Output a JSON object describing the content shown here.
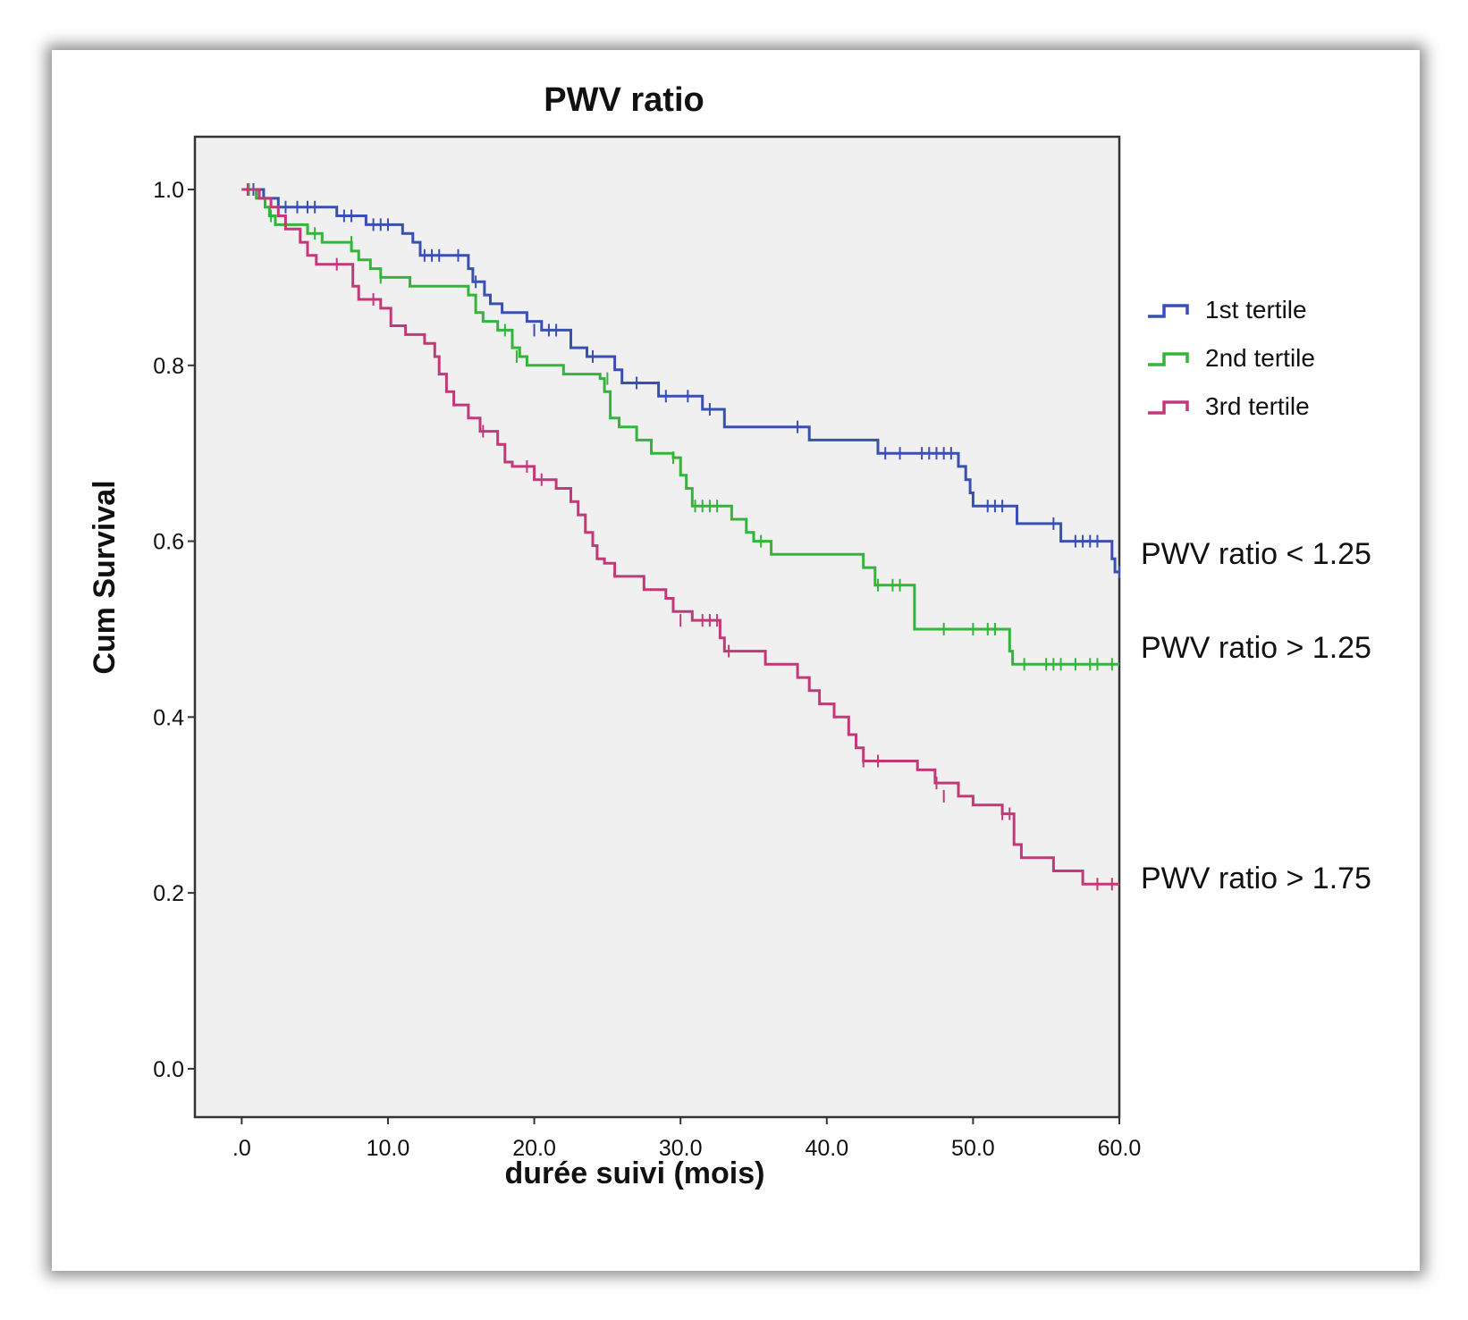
{
  "chart_data": {
    "type": "line",
    "subtype": "kaplan-meier step",
    "title": "PWV ratio",
    "xlabel": "durée suivi (mois)",
    "ylabel": "Cum Survival",
    "xlim": [
      -3.2,
      60
    ],
    "ylim": [
      -0.055,
      1.06
    ],
    "x_ticks": [
      0,
      10,
      20,
      30,
      40,
      50,
      60
    ],
    "x_tick_labels": [
      ".0",
      "10.0",
      "20.0",
      "30.0",
      "40.0",
      "50.0",
      "60.0"
    ],
    "y_ticks": [
      0,
      0.2,
      0.4,
      0.6,
      0.8,
      1.0
    ],
    "y_tick_labels": [
      "0.0",
      "0.2",
      "0.4",
      "0.6",
      "0.8",
      "1.0"
    ],
    "grid": false,
    "legend_position": "right",
    "colors": {
      "background": "#f0f0f0",
      "plot_border": "#333333"
    },
    "series": [
      {
        "name": "1st tertile",
        "color": "#3a50b0",
        "annotation": "PWV ratio < 1.25",
        "steps": [
          [
            0,
            1.0
          ],
          [
            1.5,
            0.99
          ],
          [
            2.5,
            0.98
          ],
          [
            6.5,
            0.97
          ],
          [
            8.5,
            0.96
          ],
          [
            11,
            0.95
          ],
          [
            11.7,
            0.94
          ],
          [
            12.2,
            0.925
          ],
          [
            15.5,
            0.91
          ],
          [
            15.8,
            0.895
          ],
          [
            16.6,
            0.88
          ],
          [
            17,
            0.87
          ],
          [
            17.8,
            0.86
          ],
          [
            19.5,
            0.85
          ],
          [
            20.5,
            0.84
          ],
          [
            22.5,
            0.82
          ],
          [
            23.6,
            0.81
          ],
          [
            25.5,
            0.795
          ],
          [
            26,
            0.78
          ],
          [
            28.5,
            0.765
          ],
          [
            31.5,
            0.75
          ],
          [
            33,
            0.73
          ],
          [
            38.8,
            0.715
          ],
          [
            43.5,
            0.7
          ],
          [
            49,
            0.685
          ],
          [
            49.5,
            0.67
          ],
          [
            49.8,
            0.655
          ],
          [
            50,
            0.64
          ],
          [
            53,
            0.62
          ],
          [
            56,
            0.6
          ],
          [
            59.5,
            0.58
          ],
          [
            59.7,
            0.565
          ],
          [
            60,
            0.565
          ]
        ],
        "censored": [
          [
            0.8,
            1.0
          ],
          [
            3,
            0.98
          ],
          [
            3.8,
            0.98
          ],
          [
            4.5,
            0.98
          ],
          [
            5,
            0.98
          ],
          [
            7,
            0.97
          ],
          [
            7.5,
            0.97
          ],
          [
            9,
            0.96
          ],
          [
            9.5,
            0.96
          ],
          [
            10,
            0.96
          ],
          [
            12.5,
            0.925
          ],
          [
            13,
            0.925
          ],
          [
            13.5,
            0.925
          ],
          [
            14.8,
            0.925
          ],
          [
            16,
            0.895
          ],
          [
            20,
            0.84
          ],
          [
            21,
            0.84
          ],
          [
            21.5,
            0.84
          ],
          [
            24,
            0.81
          ],
          [
            27,
            0.78
          ],
          [
            29,
            0.765
          ],
          [
            30.5,
            0.765
          ],
          [
            32,
            0.75
          ],
          [
            38,
            0.73
          ],
          [
            44,
            0.7
          ],
          [
            45,
            0.7
          ],
          [
            46.5,
            0.7
          ],
          [
            47,
            0.7
          ],
          [
            47.5,
            0.7
          ],
          [
            48,
            0.7
          ],
          [
            48.5,
            0.7
          ],
          [
            51,
            0.64
          ],
          [
            51.5,
            0.64
          ],
          [
            52,
            0.64
          ],
          [
            55.5,
            0.62
          ],
          [
            57,
            0.6
          ],
          [
            57.5,
            0.6
          ],
          [
            58,
            0.6
          ],
          [
            58.5,
            0.6
          ],
          [
            60,
            0.565
          ]
        ]
      },
      {
        "name": "2nd tertile",
        "color": "#33b53a",
        "annotation": "PWV ratio > 1.25",
        "steps": [
          [
            0,
            1.0
          ],
          [
            1,
            0.99
          ],
          [
            1.6,
            0.98
          ],
          [
            1.9,
            0.97
          ],
          [
            2.3,
            0.96
          ],
          [
            4.5,
            0.95
          ],
          [
            5.5,
            0.94
          ],
          [
            7.5,
            0.93
          ],
          [
            8,
            0.92
          ],
          [
            8.8,
            0.91
          ],
          [
            9.5,
            0.9
          ],
          [
            11.5,
            0.89
          ],
          [
            15.5,
            0.88
          ],
          [
            16,
            0.86
          ],
          [
            16.5,
            0.85
          ],
          [
            17.5,
            0.84
          ],
          [
            18.5,
            0.82
          ],
          [
            19,
            0.81
          ],
          [
            19.5,
            0.8
          ],
          [
            22,
            0.79
          ],
          [
            24.5,
            0.785
          ],
          [
            24.8,
            0.77
          ],
          [
            25.2,
            0.74
          ],
          [
            25.8,
            0.73
          ],
          [
            27,
            0.715
          ],
          [
            28,
            0.7
          ],
          [
            29.5,
            0.695
          ],
          [
            30,
            0.675
          ],
          [
            30.4,
            0.66
          ],
          [
            30.8,
            0.64
          ],
          [
            33.5,
            0.625
          ],
          [
            34.5,
            0.61
          ],
          [
            35,
            0.6
          ],
          [
            36.2,
            0.585
          ],
          [
            42.5,
            0.57
          ],
          [
            43.3,
            0.55
          ],
          [
            46,
            0.5
          ],
          [
            52.5,
            0.475
          ],
          [
            52.7,
            0.46
          ],
          [
            60,
            0.46
          ]
        ],
        "censored": [
          [
            0.5,
            1.0
          ],
          [
            2,
            0.97
          ],
          [
            5,
            0.95
          ],
          [
            7.5,
            0.94
          ],
          [
            9.5,
            0.9
          ],
          [
            18,
            0.84
          ],
          [
            18.8,
            0.81
          ],
          [
            25,
            0.785
          ],
          [
            29.5,
            0.695
          ],
          [
            31,
            0.64
          ],
          [
            31.5,
            0.64
          ],
          [
            32,
            0.64
          ],
          [
            32.5,
            0.64
          ],
          [
            35.5,
            0.6
          ],
          [
            43.5,
            0.55
          ],
          [
            44.5,
            0.55
          ],
          [
            45,
            0.55
          ],
          [
            48,
            0.5
          ],
          [
            50,
            0.5
          ],
          [
            51,
            0.5
          ],
          [
            51.5,
            0.5
          ],
          [
            53.5,
            0.46
          ],
          [
            55,
            0.46
          ],
          [
            55.5,
            0.46
          ],
          [
            56,
            0.46
          ],
          [
            57,
            0.46
          ],
          [
            58,
            0.46
          ],
          [
            58.5,
            0.46
          ],
          [
            59.5,
            0.46
          ]
        ]
      },
      {
        "name": "3rd tertile",
        "color": "#c23878",
        "annotation": "PWV ratio > 1.75",
        "steps": [
          [
            0,
            1.0
          ],
          [
            1.2,
            0.99
          ],
          [
            2,
            0.98
          ],
          [
            2.5,
            0.97
          ],
          [
            3,
            0.955
          ],
          [
            4,
            0.94
          ],
          [
            4.5,
            0.925
          ],
          [
            5.1,
            0.915
          ],
          [
            7.6,
            0.89
          ],
          [
            8,
            0.875
          ],
          [
            9.5,
            0.865
          ],
          [
            10.2,
            0.845
          ],
          [
            11.2,
            0.835
          ],
          [
            12.5,
            0.825
          ],
          [
            13.2,
            0.81
          ],
          [
            13.5,
            0.79
          ],
          [
            14,
            0.77
          ],
          [
            14.5,
            0.755
          ],
          [
            15.5,
            0.74
          ],
          [
            16.3,
            0.725
          ],
          [
            17.5,
            0.71
          ],
          [
            18,
            0.69
          ],
          [
            18.5,
            0.685
          ],
          [
            20,
            0.67
          ],
          [
            21.5,
            0.66
          ],
          [
            22.5,
            0.645
          ],
          [
            23,
            0.63
          ],
          [
            23.5,
            0.61
          ],
          [
            24,
            0.595
          ],
          [
            24.3,
            0.58
          ],
          [
            24.8,
            0.575
          ],
          [
            25.5,
            0.56
          ],
          [
            27.5,
            0.545
          ],
          [
            29,
            0.535
          ],
          [
            29.5,
            0.52
          ],
          [
            30.8,
            0.51
          ],
          [
            32.7,
            0.49
          ],
          [
            33,
            0.475
          ],
          [
            35.8,
            0.46
          ],
          [
            38,
            0.445
          ],
          [
            38.8,
            0.43
          ],
          [
            39.5,
            0.415
          ],
          [
            40.5,
            0.4
          ],
          [
            41.5,
            0.38
          ],
          [
            42,
            0.365
          ],
          [
            42.5,
            0.35
          ],
          [
            46.2,
            0.34
          ],
          [
            47.4,
            0.325
          ],
          [
            49,
            0.31
          ],
          [
            50,
            0.3
          ],
          [
            52,
            0.29
          ],
          [
            52.8,
            0.255
          ],
          [
            53.3,
            0.24
          ],
          [
            55.5,
            0.225
          ],
          [
            57.5,
            0.21
          ],
          [
            60,
            0.21
          ]
        ],
        "censored": [
          [
            0.4,
            1.0
          ],
          [
            6.5,
            0.915
          ],
          [
            9,
            0.875
          ],
          [
            16.5,
            0.725
          ],
          [
            19.5,
            0.685
          ],
          [
            20.5,
            0.67
          ],
          [
            30,
            0.51
          ],
          [
            31.5,
            0.51
          ],
          [
            32,
            0.51
          ],
          [
            32.5,
            0.51
          ],
          [
            33.3,
            0.475
          ],
          [
            42.5,
            0.35
          ],
          [
            43.5,
            0.35
          ],
          [
            47.5,
            0.325
          ],
          [
            48,
            0.31
          ],
          [
            52,
            0.29
          ],
          [
            52.5,
            0.29
          ],
          [
            58.5,
            0.21
          ],
          [
            59.5,
            0.21
          ]
        ]
      }
    ]
  }
}
